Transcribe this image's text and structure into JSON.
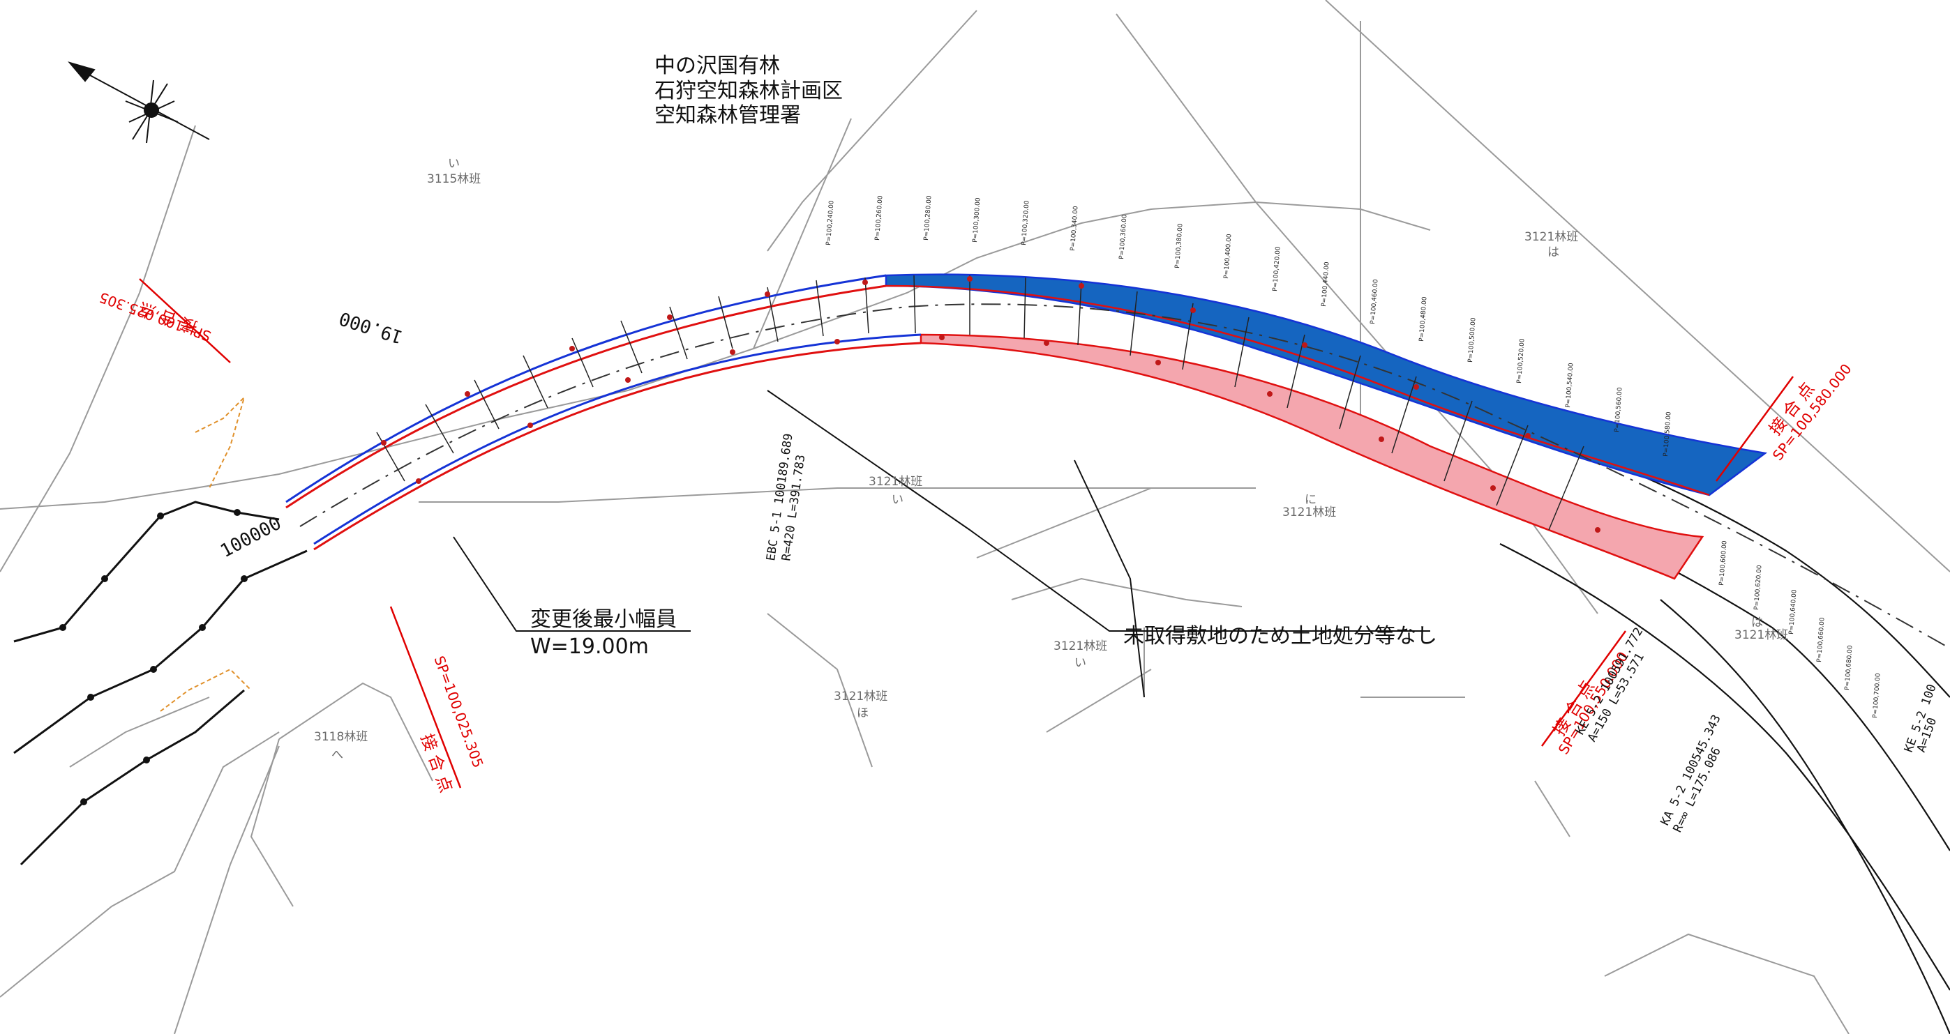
{
  "title_block": {
    "line1": "中の沢国有林",
    "line2": "石狩空知森林計画区",
    "line3": "空知森林管理署"
  },
  "stands": {
    "s3115": {
      "sub": "い",
      "name": "3115林班"
    },
    "s3121_ha": {
      "name": "3121林班",
      "sub": "は"
    },
    "s3121_i_a": {
      "name": "3121林班",
      "sub": "い"
    },
    "s3121_ni": {
      "sub": "に",
      "name": "3121林班"
    },
    "s3121_i_b": {
      "name": "3121林班",
      "sub": "い"
    },
    "s3121_ho": {
      "name": "3121林班",
      "sub": "ほ"
    },
    "s3118": {
      "name": "3118林班",
      "sub": "へ"
    },
    "s3121_ha_b": {
      "sub": "は",
      "name": "3121林班"
    }
  },
  "annotations": {
    "min_width_title": "変更後最小幅員",
    "min_width_value": "W=19.00m",
    "no_disposal": "未取得敷地のため土地処分等なし"
  },
  "stations": {
    "main": "100000",
    "width_label": "19.000"
  },
  "junctions": {
    "left_top_label": "接 合 点",
    "left_top_sp": "SP=100,025.305",
    "left_bottom_label": "接 合 点",
    "left_bottom_sp": "SP=100,025.305",
    "right_top_label": "接 合 点",
    "right_top_sp": "SP=100,580.000",
    "right_bottom_label": "接 合 点",
    "right_bottom_sp": "SP=100,550.000"
  },
  "curves": {
    "ebc_1": "EBC 5-1 100189.689",
    "ebc_2": "R=420  L=391.783",
    "ke_1": "KE 5-2 100591.772",
    "ke_2": "A=150 L=53.571",
    "ka_1": "KA 5-2 100545.343",
    "ka_2": "R=∞ L=175.086",
    "ke_r1": "KE 5-2 100",
    "ke_r2": "A=150"
  },
  "chainage_labels": [
    "P=100,240.00",
    "P=100,260.00",
    "P=100,280.00",
    "P=100,300.00",
    "P=100,320.00",
    "P=100,340.00",
    "P=100,360.00",
    "P=100,380.00",
    "P=100,400.00",
    "P=100,420.00",
    "P=100,440.00",
    "P=100,460.00",
    "P=100,480.00",
    "P=100,500.00",
    "P=100,520.00",
    "P=100,540.00",
    "P=100,560.00",
    "P=100,580.00",
    "P=100,600.00",
    "P=100,620.00",
    "P=100,640.00",
    "P=100,660.00",
    "P=100,680.00",
    "P=100,700.00"
  ],
  "legend_colors": {
    "expand_area": "#1565c0",
    "reduce_area": "#f4a6ae",
    "road_edge_blue": "#1533d6",
    "road_edge_red": "#e01010",
    "junction_red": "#e00000"
  }
}
